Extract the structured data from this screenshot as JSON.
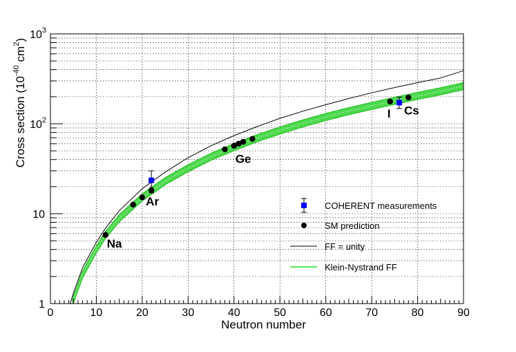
{
  "chart_data": {
    "type": "scatter",
    "xlabel": "Neutron number",
    "ylabel_main": "Cross section (10",
    "ylabel_exp": "-40",
    "ylabel_tail": " cm",
    "ylabel_sq": "2",
    "ylabel_close": ")",
    "xlim": [
      0,
      90
    ],
    "ylim": [
      1,
      1000
    ],
    "yscale": "log",
    "grid": true,
    "legend_position": "center-right",
    "x_ticks": [
      "0",
      "10",
      "20",
      "30",
      "40",
      "50",
      "60",
      "70",
      "80",
      "90"
    ],
    "y_ticks": {
      "t1": "1",
      "t10": "10",
      "t100_base": "10",
      "t100_exp": "2",
      "t1000_base": "10",
      "t1000_exp": "3"
    },
    "series": [
      {
        "name": "COHERENT measurements",
        "kind": "points_with_errors",
        "color": "#0000ff",
        "points": [
          {
            "x": 22,
            "y": 23.5,
            "ylo": 17,
            "yhi": 30
          },
          {
            "x": 76,
            "y": 172,
            "ylo": 148,
            "yhi": 198
          }
        ]
      },
      {
        "name": "SM prediction",
        "kind": "points",
        "color": "#000000",
        "points": [
          {
            "x": 12,
            "y": 5.8
          },
          {
            "x": 18,
            "y": 12.6
          },
          {
            "x": 20,
            "y": 15.2
          },
          {
            "x": 22,
            "y": 18.3
          },
          {
            "x": 38,
            "y": 52
          },
          {
            "x": 40,
            "y": 57
          },
          {
            "x": 41,
            "y": 60
          },
          {
            "x": 42,
            "y": 63
          },
          {
            "x": 44,
            "y": 68
          },
          {
            "x": 74,
            "y": 177
          },
          {
            "x": 78,
            "y": 196
          }
        ]
      },
      {
        "name": "FF = unity",
        "kind": "line",
        "color": "#000000",
        "points": [
          {
            "x": 4.3,
            "y": 1.0
          },
          {
            "x": 5,
            "y": 1.3
          },
          {
            "x": 7,
            "y": 2.5
          },
          {
            "x": 10,
            "y": 4.8
          },
          {
            "x": 12,
            "y": 6.9
          },
          {
            "x": 15,
            "y": 10.8
          },
          {
            "x": 20,
            "y": 19
          },
          {
            "x": 25,
            "y": 29
          },
          {
            "x": 30,
            "y": 42
          },
          {
            "x": 35,
            "y": 57
          },
          {
            "x": 40,
            "y": 74
          },
          {
            "x": 45,
            "y": 93
          },
          {
            "x": 50,
            "y": 115
          },
          {
            "x": 55,
            "y": 138
          },
          {
            "x": 60,
            "y": 163
          },
          {
            "x": 65,
            "y": 191
          },
          {
            "x": 70,
            "y": 221
          },
          {
            "x": 75,
            "y": 253
          },
          {
            "x": 80,
            "y": 287
          },
          {
            "x": 85,
            "y": 323
          },
          {
            "x": 90,
            "y": 390
          }
        ]
      },
      {
        "name": "Klein-Nystrand FF",
        "kind": "band",
        "color": "#00cc00",
        "points": [
          {
            "x": 4.8,
            "y": 1.0
          },
          {
            "x": 5,
            "y": 1.1
          },
          {
            "x": 7,
            "y": 2.1
          },
          {
            "x": 10,
            "y": 4.0
          },
          {
            "x": 12,
            "y": 5.8
          },
          {
            "x": 15,
            "y": 8.9
          },
          {
            "x": 20,
            "y": 15.2
          },
          {
            "x": 25,
            "y": 23
          },
          {
            "x": 30,
            "y": 32
          },
          {
            "x": 35,
            "y": 43
          },
          {
            "x": 40,
            "y": 55
          },
          {
            "x": 45,
            "y": 69
          },
          {
            "x": 50,
            "y": 84
          },
          {
            "x": 55,
            "y": 101
          },
          {
            "x": 60,
            "y": 119
          },
          {
            "x": 65,
            "y": 138
          },
          {
            "x": 70,
            "y": 158
          },
          {
            "x": 75,
            "y": 180
          },
          {
            "x": 80,
            "y": 204
          },
          {
            "x": 85,
            "y": 230
          },
          {
            "x": 90,
            "y": 262
          }
        ],
        "band_half_width": 0.04
      }
    ],
    "annotations": [
      {
        "text": "Na",
        "x": 12,
        "y": 5.8
      },
      {
        "text": "Ar",
        "x": 22,
        "y": 18.3
      },
      {
        "text": "Ge",
        "x": 40,
        "y": 57
      },
      {
        "text": "I",
        "x": 74,
        "y": 177
      },
      {
        "text": "Cs",
        "x": 76,
        "y": 172
      }
    ]
  }
}
